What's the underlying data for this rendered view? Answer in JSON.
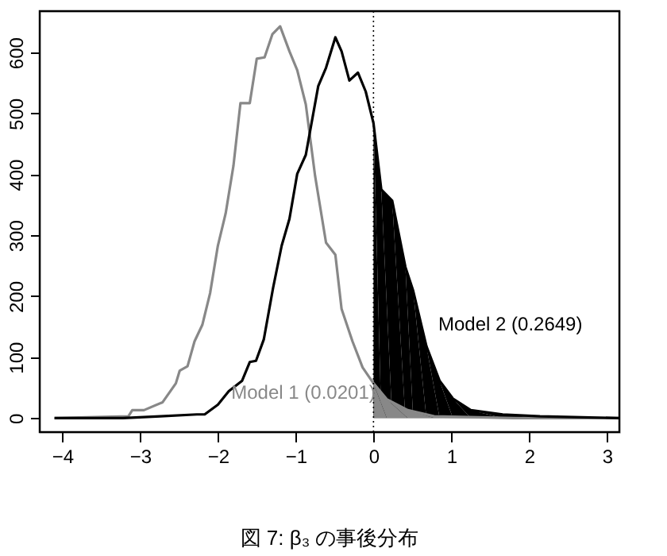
{
  "chart_data": {
    "type": "line",
    "title": "図 7: β₃ の事後分布",
    "xlim": [
      -4.29,
      3.16
    ],
    "ylim": [
      -23,
      668
    ],
    "xticks": [
      -4,
      -3,
      -2,
      -1,
      0,
      1,
      2,
      3
    ],
    "yticks": [
      0,
      100,
      200,
      300,
      400,
      500,
      600
    ],
    "grid": false,
    "line_style": "solid",
    "series": [
      {
        "type": "area",
        "color": "#000000",
        "x": [
          0,
          0.1,
          0.24,
          0.41,
          0.51,
          0.68,
          0.85,
          1.02,
          1.25,
          1.66,
          2.14,
          3.15
        ],
        "values": [
          484,
          375,
          357,
          248,
          209,
          118,
          61,
          32,
          13,
          6,
          3,
          0
        ]
      },
      {
        "type": "area",
        "color": "#888888",
        "x": [
          0,
          0.17,
          0.44,
          0.78,
          1.8,
          3.15
        ],
        "values": [
          57,
          31,
          13,
          3,
          0,
          0
        ]
      },
      {
        "color": "#888888",
        "x": [
          -4.1,
          -3.15,
          -3.1,
          -2.95,
          -2.71,
          -2.54,
          -2.49,
          -2.39,
          -2.3,
          -2.2,
          -2.1,
          -2.0,
          -1.9,
          -1.8,
          -1.71,
          -1.59,
          -1.5,
          -1.4,
          -1.3,
          -1.2,
          -1.08,
          -0.98,
          -0.87,
          -0.75,
          -0.61,
          -0.49,
          -0.41,
          -0.27,
          -0.14,
          0,
          0.17,
          0.44,
          0.78,
          1.8,
          3.15
        ],
        "values": [
          0,
          3,
          13,
          13,
          26,
          57,
          78,
          85,
          126,
          153,
          205,
          283,
          336,
          414,
          517,
          517,
          590,
          592,
          630,
          643,
          602,
          571,
          515,
          397,
          288,
          268,
          179,
          126,
          83,
          57,
          31,
          13,
          3,
          0,
          0
        ]
      },
      {
        "color": "#000000",
        "x": [
          -4.1,
          -3.22,
          -2.74,
          -2.27,
          -2.17,
          -2.0,
          -1.86,
          -1.69,
          -1.59,
          -1.51,
          -1.41,
          -1.29,
          -1.18,
          -1.08,
          -0.98,
          -0.87,
          -0.71,
          -0.61,
          -0.49,
          -0.41,
          -0.31,
          -0.2,
          -0.1,
          0,
          0.1,
          0.24,
          0.41,
          0.51,
          0.68,
          0.85,
          1.02,
          1.25,
          1.66,
          2.14,
          3.15
        ],
        "values": [
          0,
          0,
          3,
          6,
          6,
          22,
          44,
          61,
          92,
          94,
          129,
          214,
          283,
          327,
          401,
          432,
          545,
          575,
          625,
          602,
          554,
          567,
          536,
          484,
          375,
          357,
          248,
          209,
          118,
          61,
          32,
          13,
          6,
          3,
          0
        ]
      }
    ],
    "ref_lines": [
      {
        "axis": "x",
        "value": 0,
        "color": "#000000",
        "line_style": "dotted"
      }
    ],
    "annotations": [
      "Model 1 (0.0201)",
      "Model 2 (0.2649)"
    ]
  }
}
